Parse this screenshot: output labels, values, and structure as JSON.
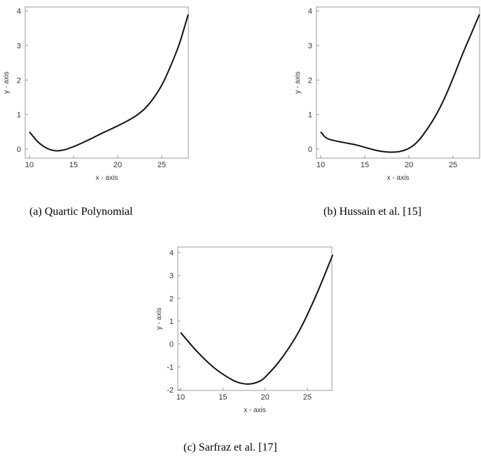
{
  "chart_data": [
    {
      "type": "line",
      "caption": "(a) Quartic Polynomial",
      "xlabel": "x - axis",
      "ylabel": "y - axis",
      "xlim": [
        10,
        28
      ],
      "ylim": [
        -0.25,
        4.1
      ],
      "xticks": [
        10,
        15,
        20,
        25
      ],
      "yticks": [
        0,
        1,
        2,
        3,
        4
      ],
      "grid": false,
      "x": [
        10,
        11,
        12,
        13,
        14,
        15,
        16,
        17,
        18,
        19,
        20,
        21,
        22,
        23,
        24,
        25,
        26,
        27,
        28
      ],
      "y": [
        0.5,
        0.2,
        0.02,
        -0.05,
        -0.02,
        0.07,
        0.18,
        0.3,
        0.43,
        0.55,
        0.67,
        0.8,
        0.95,
        1.15,
        1.45,
        1.85,
        2.4,
        3.05,
        3.9
      ]
    },
    {
      "type": "line",
      "caption": "(b) Hussain et al. [15]",
      "xlabel": "x - axis",
      "ylabel": "y - axis",
      "xlim": [
        10,
        28
      ],
      "ylim": [
        -0.25,
        4.1
      ],
      "xticks": [
        10,
        15,
        20,
        25
      ],
      "yticks": [
        0,
        1,
        2,
        3,
        4
      ],
      "grid": false,
      "x": [
        10,
        10.5,
        11,
        12,
        13,
        14,
        15,
        16,
        17,
        18,
        19,
        20,
        21,
        22,
        23,
        24,
        25,
        26,
        27,
        28
      ],
      "y": [
        0.5,
        0.35,
        0.28,
        0.22,
        0.17,
        0.12,
        0.05,
        -0.02,
        -0.07,
        -0.09,
        -0.07,
        0.02,
        0.22,
        0.55,
        0.95,
        1.45,
        2.05,
        2.7,
        3.3,
        3.9
      ]
    },
    {
      "type": "line",
      "caption": "(c) Sarfraz et al. [17]",
      "xlabel": "x - axis",
      "ylabel": "y - axis",
      "xlim": [
        10,
        28
      ],
      "ylim": [
        -2,
        4.2
      ],
      "xticks": [
        10,
        15,
        20,
        25
      ],
      "yticks": [
        -2,
        -1,
        0,
        1,
        2,
        3,
        4
      ],
      "grid": false,
      "x": [
        10,
        12,
        14,
        16,
        17,
        18,
        19,
        20,
        22,
        24,
        26,
        28
      ],
      "y": [
        0.5,
        -0.35,
        -1.05,
        -1.55,
        -1.7,
        -1.75,
        -1.68,
        -1.45,
        -0.6,
        0.55,
        2.1,
        3.9
      ]
    }
  ]
}
